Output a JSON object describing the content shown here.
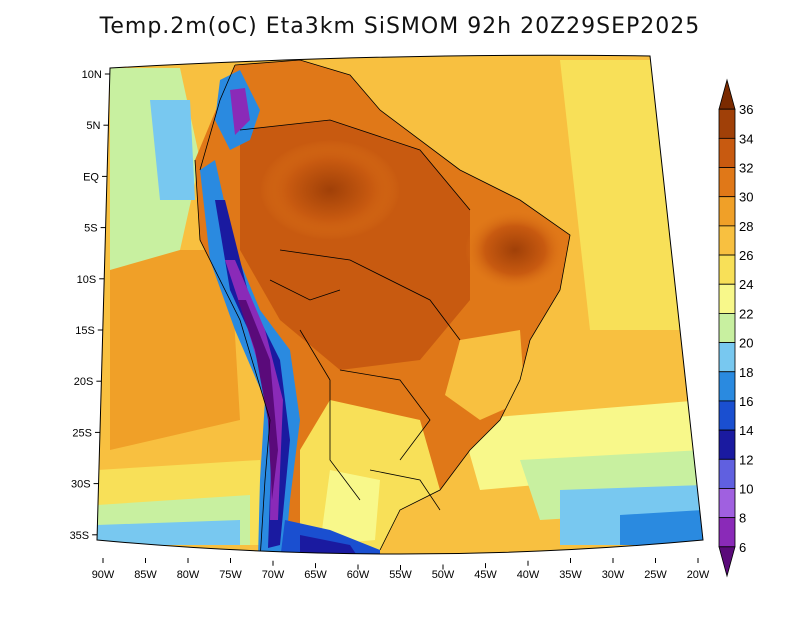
{
  "title": "Temp.2m(oC) Eta3km SiSMOM 92h 20Z29SEP2025",
  "lat_labels": [
    "10N",
    "5N",
    "EQ",
    "5S",
    "10S",
    "15S",
    "20S",
    "25S",
    "30S",
    "35S"
  ],
  "lon_labels": [
    "90W",
    "85W",
    "80W",
    "75W",
    "70W",
    "65W",
    "60W",
    "55W",
    "50W",
    "45W",
    "40W",
    "35W",
    "30W",
    "25W",
    "20W"
  ],
  "colorbar": {
    "labels": [
      "6",
      "8",
      "10",
      "12",
      "14",
      "16",
      "18",
      "20",
      "22",
      "24",
      "26",
      "28",
      "30",
      "32",
      "34",
      "36"
    ],
    "colors": [
      "#5a0a7a",
      "#8a2ab8",
      "#a060e0",
      "#6060e0",
      "#1a1aa0",
      "#1a4fd0",
      "#2a8ae0",
      "#78c8f0",
      "#c8f0a0",
      "#f8f88a",
      "#f8e058",
      "#f8c040",
      "#f0a028",
      "#e07818",
      "#c85a10",
      "#a04008",
      "#7a2a00"
    ]
  },
  "legend_unit": "oC"
}
